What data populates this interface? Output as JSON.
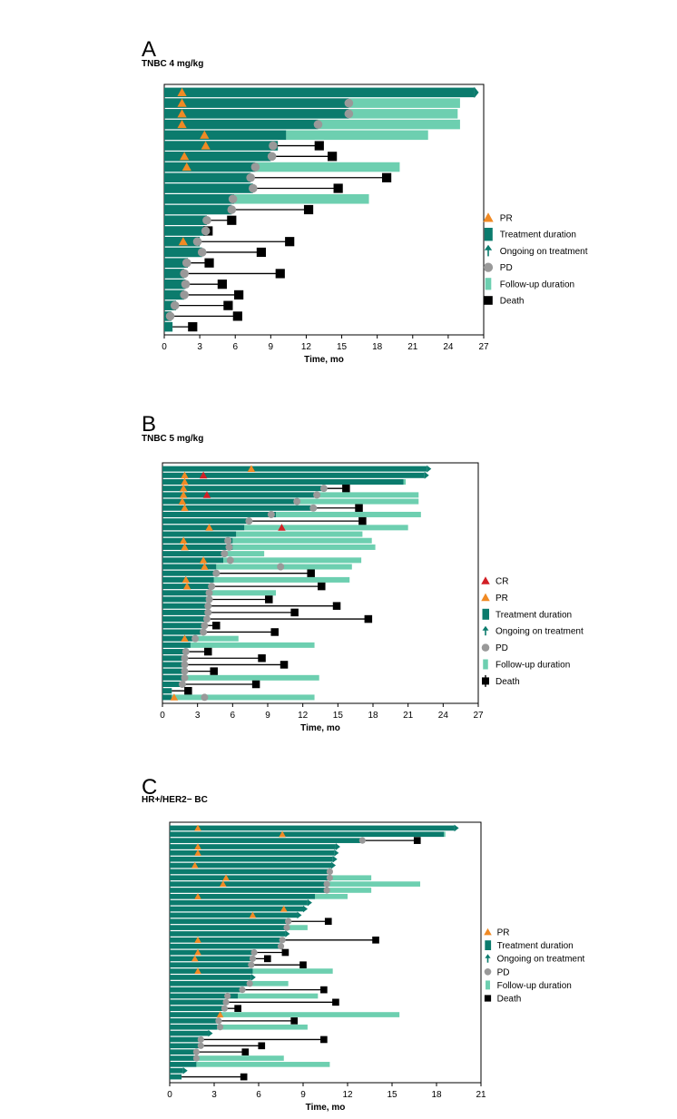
{
  "colors": {
    "treatment": "#0b7b6d",
    "followup": "#6dcfb0",
    "pr": "#f08a24",
    "cr": "#d21f25",
    "pd": "#999999",
    "death": "#000000"
  },
  "chart_data": [
    {
      "type": "swimmer",
      "panel": "A",
      "title": "TNBC 4 mg/kg",
      "xlabel": "Time, mo",
      "xlim": [
        0,
        27
      ],
      "xticks": [
        0,
        3,
        6,
        9,
        12,
        15,
        18,
        21,
        24,
        27
      ],
      "legend": [
        "PR",
        "Treatment duration",
        "Ongoing on treatment",
        "PD",
        "Follow-up duration",
        "Death"
      ],
      "patients": [
        {
          "t": 26.2,
          "ongoing": true,
          "pr": [
            1.5
          ]
        },
        {
          "t": 15.6,
          "f": 25.0,
          "pd": 15.6,
          "pr": [
            1.5
          ]
        },
        {
          "t": 15.6,
          "f": 24.8,
          "pd": 15.6,
          "pr": [
            1.5
          ]
        },
        {
          "t": 13.0,
          "f": 25.0,
          "pd": 13.0,
          "pr": [
            1.5
          ]
        },
        {
          "t": 10.3,
          "f": 22.3,
          "pr": [
            3.4
          ]
        },
        {
          "t": 9.6,
          "pd": 9.2,
          "death": 13.1,
          "pr": [
            3.5
          ]
        },
        {
          "t": 9.0,
          "pd": 9.1,
          "death": 14.2,
          "pr": [
            1.7
          ]
        },
        {
          "t": 7.7,
          "f": 19.9,
          "pd": 7.7,
          "pr": [
            1.9
          ]
        },
        {
          "t": 7.3,
          "pd": 7.3,
          "death": 18.8
        },
        {
          "t": 7.5,
          "pd": 7.5,
          "death": 14.7
        },
        {
          "t": 5.9,
          "f": 17.3,
          "pd": 5.8
        },
        {
          "t": 5.7,
          "pd": 5.7,
          "death": 12.2
        },
        {
          "t": 3.6,
          "pd": 3.6,
          "death": 5.7
        },
        {
          "t": 3.5,
          "pd": 3.5,
          "death": 3.7
        },
        {
          "t": 3.0,
          "pd": 2.8,
          "death": 10.6,
          "pr": [
            1.6
          ]
        },
        {
          "t": 3.2,
          "pd": 3.2,
          "death": 8.2
        },
        {
          "t": 2.0,
          "pd": 1.9,
          "death": 3.8
        },
        {
          "t": 1.7,
          "pd": 1.7,
          "death": 9.8
        },
        {
          "t": 1.8,
          "pd": 1.8,
          "death": 4.9
        },
        {
          "t": 1.7,
          "pd": 1.7,
          "death": 6.3
        },
        {
          "t": 1.0,
          "pd": 0.9,
          "death": 5.4
        },
        {
          "t": 0.6,
          "pd": 0.5,
          "death": 6.2
        },
        {
          "t": 0.7,
          "death": 2.4
        }
      ]
    },
    {
      "type": "swimmer",
      "panel": "B",
      "title": "TNBC 5 mg/kg",
      "xlabel": "Time, mo",
      "xlim": [
        0,
        27
      ],
      "xticks": [
        0,
        3,
        6,
        9,
        12,
        15,
        18,
        21,
        24,
        27
      ],
      "legend": [
        "CR",
        "PR",
        "Treatment duration",
        "Ongoing on treatment",
        "PD",
        "Follow-up duration",
        "Death"
      ],
      "patients": [
        {
          "t": 22.6,
          "ongoing": true,
          "pr": [
            7.6
          ]
        },
        {
          "t": 22.4,
          "ongoing": true,
          "pr": [
            1.9
          ],
          "cr": [
            3.5
          ]
        },
        {
          "t": 20.6,
          "f": 20.8,
          "pr": [
            1.9
          ]
        },
        {
          "t": 13.8,
          "pd": 13.8,
          "death": 15.7,
          "pr": [
            1.8
          ]
        },
        {
          "t": 13.2,
          "f": 21.9,
          "pd": 13.2,
          "pr": [
            1.8
          ],
          "cr": [
            3.8
          ]
        },
        {
          "t": 11.5,
          "f": 21.9,
          "pd": 11.5,
          "pr": [
            1.7
          ]
        },
        {
          "t": 12.9,
          "pd": 12.9,
          "death": 16.8,
          "pr": [
            1.9
          ]
        },
        {
          "t": 9.7,
          "f": 22.1,
          "pd": 9.3
        },
        {
          "t": 7.4,
          "pd": 7.4,
          "death": 17.1
        },
        {
          "t": 7.0,
          "f": 21.0,
          "pr": [
            4.0
          ],
          "cr": [
            10.2
          ]
        },
        {
          "t": 6.3,
          "f": 17.1
        },
        {
          "t": 6.0,
          "f": 17.9,
          "pd": 5.6,
          "pr": [
            1.8
          ]
        },
        {
          "t": 6.0,
          "f": 18.2,
          "pd": 5.7,
          "pr": [
            1.9
          ]
        },
        {
          "t": 5.3,
          "f": 8.7,
          "pd": 5.3
        },
        {
          "t": 5.2,
          "f": 17.0,
          "pd": 5.8,
          "pr": [
            3.5
          ]
        },
        {
          "t": 4.6,
          "f": 16.2,
          "pd": 10.1,
          "pr": [
            3.6
          ]
        },
        {
          "t": 4.6,
          "pd": 4.6,
          "death": 12.7
        },
        {
          "t": 4.4,
          "f": 16.0,
          "pr": [
            2.0
          ]
        },
        {
          "t": 4.2,
          "pd": 4.2,
          "death": 13.6,
          "pr": [
            2.1
          ]
        },
        {
          "t": 4.0,
          "f": 9.7,
          "pd": 4.0
        },
        {
          "t": 4.0,
          "pd": 4.0,
          "death": 9.1
        },
        {
          "t": 3.9,
          "pd": 3.9,
          "death": 14.9
        },
        {
          "t": 3.9,
          "pd": 3.9,
          "death": 11.3
        },
        {
          "t": 3.8,
          "pd": 3.8,
          "death": 17.6
        },
        {
          "t": 3.6,
          "pd": 3.6,
          "death": 4.6
        },
        {
          "t": 3.5,
          "pd": 3.5,
          "death": 9.6
        },
        {
          "t": 2.8,
          "f": 6.5,
          "pd": 2.8,
          "pr": [
            1.9
          ]
        },
        {
          "t": 2.4,
          "f": 13.0
        },
        {
          "t": 2.0,
          "pd": 2.0,
          "death": 3.9
        },
        {
          "t": 1.9,
          "pd": 1.9,
          "death": 8.5
        },
        {
          "t": 1.9,
          "pd": 1.9,
          "death": 10.4
        },
        {
          "t": 1.9,
          "pd": 1.9,
          "death": 4.4
        },
        {
          "t": 1.9,
          "f": 13.4,
          "pd": 1.9
        },
        {
          "t": 1.7,
          "pd": 1.7,
          "death": 8.0
        },
        {
          "t": 0.8,
          "death": 2.2
        },
        {
          "t": 0.8,
          "f": 13.0,
          "pd": 3.6,
          "pr": [
            1.0
          ]
        }
      ]
    },
    {
      "type": "swimmer",
      "panel": "C",
      "title": "HR+/HER2− BC",
      "xlabel": "Time, mo",
      "xlim": [
        0,
        21
      ],
      "xticks": [
        0,
        3,
        6,
        9,
        12,
        15,
        18,
        21
      ],
      "legend": [
        "PR",
        "Treatment duration",
        "Ongoing on treatment",
        "PD",
        "Follow-up duration",
        "Death"
      ],
      "patients": [
        {
          "t": 19.2,
          "ongoing": true,
          "pr": [
            1.9
          ]
        },
        {
          "t": 18.5,
          "f": 18.6,
          "pr": [
            7.6
          ]
        },
        {
          "t": 13.0,
          "pd": 13.0,
          "death": 16.7
        },
        {
          "t": 11.2,
          "ongoing": true,
          "pr": [
            1.9
          ]
        },
        {
          "t": 11.1,
          "ongoing": true,
          "pr": [
            1.9
          ]
        },
        {
          "t": 11.0,
          "ongoing": true
        },
        {
          "t": 10.9,
          "ongoing": true,
          "pr": [
            1.7
          ]
        },
        {
          "t": 10.8,
          "pd": 10.8
        },
        {
          "t": 10.8,
          "f": 13.6,
          "pd": 10.8,
          "pr": [
            3.8
          ]
        },
        {
          "t": 10.6,
          "f": 16.9,
          "pd": 10.6,
          "pr": [
            3.6
          ]
        },
        {
          "t": 10.6,
          "f": 13.6,
          "pd": 10.6
        },
        {
          "t": 9.8,
          "f": 12.0,
          "pr": [
            1.9
          ]
        },
        {
          "t": 9.3,
          "ongoing": true
        },
        {
          "t": 9.0,
          "ongoing": true,
          "pr": [
            7.7
          ]
        },
        {
          "t": 8.6,
          "ongoing": true,
          "pr": [
            5.6
          ]
        },
        {
          "t": 8.0,
          "pd": 8.0,
          "death": 10.7
        },
        {
          "t": 7.9,
          "f": 9.3,
          "pd": 7.9
        },
        {
          "t": 7.8,
          "ongoing": true
        },
        {
          "t": 7.6,
          "pd": 7.6,
          "death": 13.9,
          "pr": [
            1.9
          ]
        },
        {
          "t": 7.5,
          "pd": 7.5
        },
        {
          "t": 5.7,
          "pd": 5.7,
          "death": 7.8,
          "pr": [
            1.9
          ]
        },
        {
          "t": 5.6,
          "pd": 5.6,
          "death": 6.6,
          "pr": [
            1.7
          ]
        },
        {
          "t": 5.5,
          "pd": 5.5,
          "death": 9.0
        },
        {
          "t": 5.6,
          "f": 11.0,
          "pr": [
            1.9
          ]
        },
        {
          "t": 5.5,
          "ongoing": true
        },
        {
          "t": 5.4,
          "f": 8.0,
          "pd": 5.4
        },
        {
          "t": 4.9,
          "pd": 4.9,
          "death": 10.4
        },
        {
          "t": 4.6,
          "f": 10.0,
          "pd": 3.9
        },
        {
          "t": 3.8,
          "pd": 3.8,
          "death": 11.2
        },
        {
          "t": 3.7,
          "pd": 3.7,
          "death": 4.6
        },
        {
          "t": 3.5,
          "f": 15.5,
          "pr": [
            3.4
          ]
        },
        {
          "t": 3.3,
          "pd": 3.3,
          "death": 8.4
        },
        {
          "t": 3.2,
          "f": 9.3,
          "pd": 3.4
        },
        {
          "t": 2.6,
          "ongoing": true
        },
        {
          "t": 2.1,
          "pd": 2.1,
          "death": 10.4
        },
        {
          "t": 2.1,
          "pd": 2.1,
          "death": 6.2
        },
        {
          "t": 1.8,
          "pd": 1.8,
          "death": 5.1
        },
        {
          "t": 1.9,
          "f": 7.7,
          "pd": 1.8
        },
        {
          "t": 1.8,
          "f": 10.8
        },
        {
          "t": 0.9,
          "ongoing": true
        },
        {
          "t": 0.8,
          "death": 5.0
        }
      ]
    }
  ]
}
